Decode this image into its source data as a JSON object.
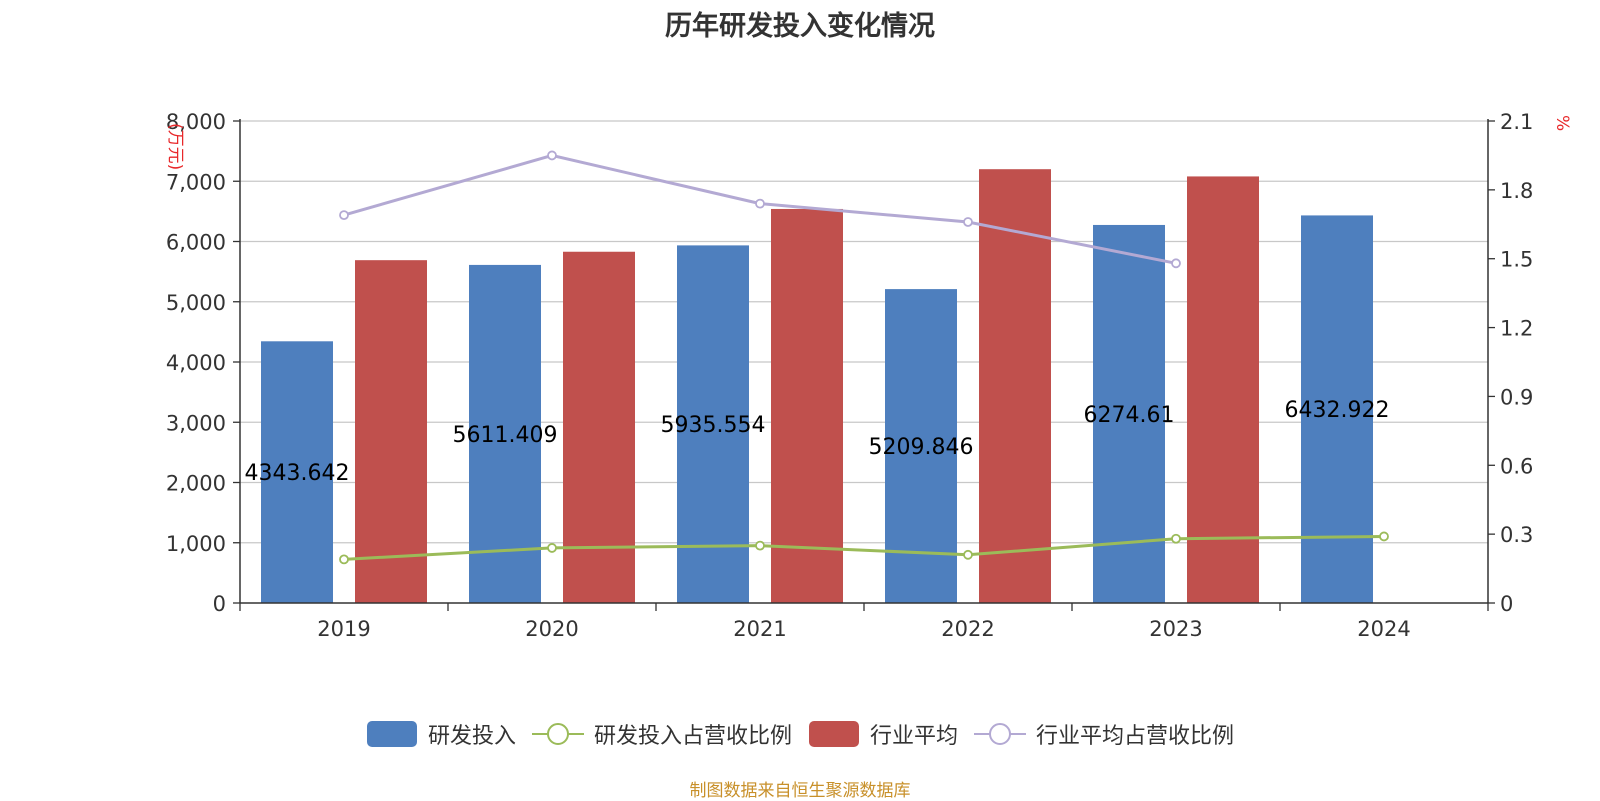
{
  "chart_data": {
    "type": "bar",
    "title": "历年研发投入变化情况",
    "categories": [
      "2019",
      "2020",
      "2021",
      "2022",
      "2023",
      "2024"
    ],
    "y_left": {
      "unit": "(万元)",
      "ylim": [
        0,
        8000
      ],
      "ticks": [
        "0",
        "1,000",
        "2,000",
        "3,000",
        "4,000",
        "5,000",
        "6,000",
        "7,000",
        "8,000"
      ]
    },
    "y_right": {
      "unit": "%",
      "ylim": [
        0,
        2.1
      ],
      "ticks": [
        "0",
        "0.3",
        "0.6",
        "0.9",
        "1.2",
        "1.5",
        "1.8",
        "2.1"
      ]
    },
    "grid": true,
    "legend_position": "bottom",
    "series": [
      {
        "name": "研发投入",
        "kind": "bar",
        "axis": "left",
        "color": "#4e7fbe",
        "values": [
          4343.642,
          5611.409,
          5935.554,
          5209.846,
          6274.61,
          6432.922
        ],
        "labels": [
          "4343.642",
          "5611.409",
          "5935.554",
          "5209.846",
          "6274.61",
          "6432.922"
        ]
      },
      {
        "name": "行业平均",
        "kind": "bar",
        "axis": "left",
        "color": "#c0504d",
        "values": [
          5690,
          5830,
          6540,
          7200,
          7080,
          null
        ]
      },
      {
        "name": "研发投入占营收比例",
        "kind": "line",
        "axis": "right",
        "color": "#9bbb59",
        "values": [
          0.19,
          0.24,
          0.25,
          0.21,
          0.28,
          0.29
        ]
      },
      {
        "name": "行业平均占营收比例",
        "kind": "line",
        "axis": "right",
        "color": "#b3a9d3",
        "values": [
          1.69,
          1.95,
          1.74,
          1.66,
          1.48,
          null
        ]
      }
    ]
  },
  "source_note": "制图数据来自恒生聚源数据库"
}
